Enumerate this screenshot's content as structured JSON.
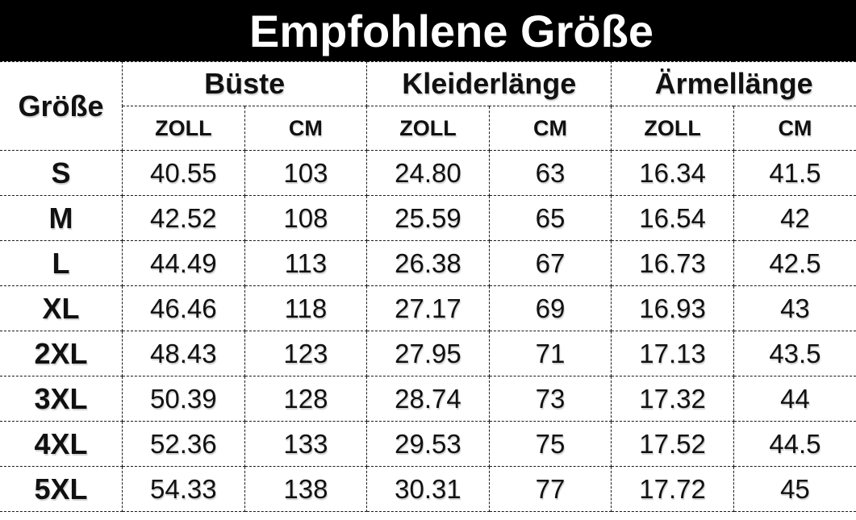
{
  "title": "Empfohlene Größe",
  "table": {
    "corner_header": "Größe",
    "groups": [
      {
        "label": "Büste",
        "units": [
          "ZOLL",
          "CM"
        ]
      },
      {
        "label": "Kleiderlänge",
        "units": [
          "ZOLL",
          "CM"
        ]
      },
      {
        "label": "Ärmellänge",
        "units": [
          "ZOLL",
          "CM"
        ]
      }
    ],
    "unit_row": [
      "ZOLL",
      "CM",
      "ZOLL",
      "CM",
      "ZOLL",
      "CM"
    ],
    "rows": [
      {
        "size": "S",
        "values": [
          "40.55",
          "103",
          "24.80",
          "63",
          "16.34",
          "41.5"
        ]
      },
      {
        "size": "M",
        "values": [
          "42.52",
          "108",
          "25.59",
          "65",
          "16.54",
          "42"
        ]
      },
      {
        "size": "L",
        "values": [
          "44.49",
          "113",
          "26.38",
          "67",
          "16.73",
          "42.5"
        ]
      },
      {
        "size": "XL",
        "values": [
          "46.46",
          "118",
          "27.17",
          "69",
          "16.93",
          "43"
        ]
      },
      {
        "size": "2XL",
        "values": [
          "48.43",
          "123",
          "27.95",
          "71",
          "17.13",
          "43.5"
        ]
      },
      {
        "size": "3XL",
        "values": [
          "50.39",
          "128",
          "28.74",
          "73",
          "17.32",
          "44"
        ]
      },
      {
        "size": "4XL",
        "values": [
          "52.36",
          "133",
          "29.53",
          "75",
          "17.52",
          "44.5"
        ]
      },
      {
        "size": "5XL",
        "values": [
          "54.33",
          "138",
          "30.31",
          "77",
          "17.72",
          "45"
        ]
      }
    ]
  },
  "colors": {
    "title_bar_bg": "#000000",
    "title_text": "#ffffff",
    "table_text": "#111111",
    "border": "#1a1a1a",
    "background": "#ffffff"
  }
}
